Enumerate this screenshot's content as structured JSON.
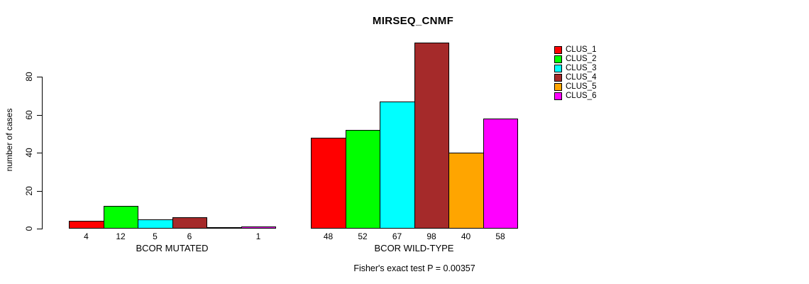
{
  "chart_data": {
    "type": "bar",
    "title": "MIRSEQ_CNMF",
    "xlabel": "",
    "ylabel": "number of cases",
    "ylim": [
      0,
      80
    ],
    "yticks": [
      0,
      20,
      40,
      60,
      80
    ],
    "grid": false,
    "legend_position": "right-top",
    "categories": [
      "BCOR MUTATED",
      "BCOR WILD-TYPE"
    ],
    "series": [
      {
        "name": "CLUS_1",
        "color": "#FF0000",
        "values": [
          4,
          48
        ]
      },
      {
        "name": "CLUS_2",
        "color": "#00FF00",
        "values": [
          12,
          52
        ]
      },
      {
        "name": "CLUS_3",
        "color": "#00FFFF",
        "values": [
          5,
          67
        ]
      },
      {
        "name": "CLUS_4",
        "color": "#A52A2A",
        "values": [
          6,
          98
        ]
      },
      {
        "name": "CLUS_5",
        "color": "#FFA500",
        "values": [
          0,
          40
        ]
      },
      {
        "name": "CLUS_6",
        "color": "#FF00FF",
        "values": [
          1,
          58
        ]
      }
    ],
    "bar_value_labels_visible": true,
    "zero_value_labels_hidden": true,
    "annotation": "Fisher's exact test P = 0.00357"
  }
}
